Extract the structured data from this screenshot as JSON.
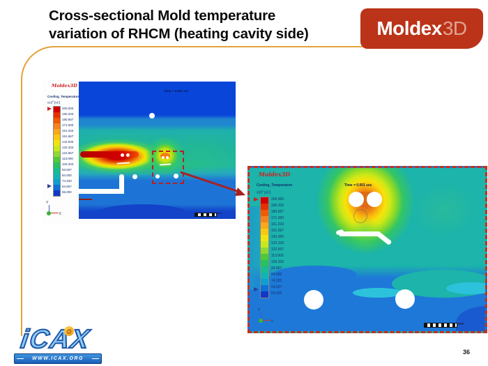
{
  "slide": {
    "title": [
      "Cross-sectional Mold temperature",
      "variation of RHCM (heating cavity side)"
    ],
    "page_number": "36"
  },
  "logo": {
    "text": "Moldex",
    "suffix": "3D",
    "bg_color": "#bb3318"
  },
  "accent_color": "#e2a23c",
  "legend": {
    "title": "Cooling_Temperature",
    "unit_prefix": "x10",
    "unit_exponent": "0",
    "unit": "[oC]",
    "values": [
      "200.000",
      "190.333",
      "180.667",
      "171.000",
      "161.333",
      "151.667",
      "142.000",
      "132.333",
      "122.667",
      "113.000",
      "103.333",
      "93.667",
      "84.000",
      "74.333",
      "64.667",
      "55.000"
    ],
    "colors": [
      "#d00000",
      "#e63000",
      "#f05a00",
      "#f58220",
      "#f8a81a",
      "#f8c812",
      "#f0e410",
      "#c8e81e",
      "#8fd832",
      "#50c83c",
      "#28c060",
      "#18bc90",
      "#14b4b4",
      "#129ed0",
      "#1070d8",
      "#1038c8"
    ]
  },
  "left_view": {
    "brand": "Moldex3D",
    "time_label": "Time = 0.001 sec",
    "ruler_unit": "mm",
    "axis_v": "Y",
    "axis_h": "X"
  },
  "right_view": {
    "brand": "Moldex3D",
    "time_label": "Time = 0.001 sec",
    "ruler_unit": "mm",
    "axis_v": "Y",
    "axis_h": "X"
  },
  "icax": {
    "text": "iCAX",
    "at": "@",
    "banner": "WWW.ICAX.ORG"
  },
  "annotation": {
    "arrow_color": "#a62121",
    "box_color": "#b42222"
  }
}
